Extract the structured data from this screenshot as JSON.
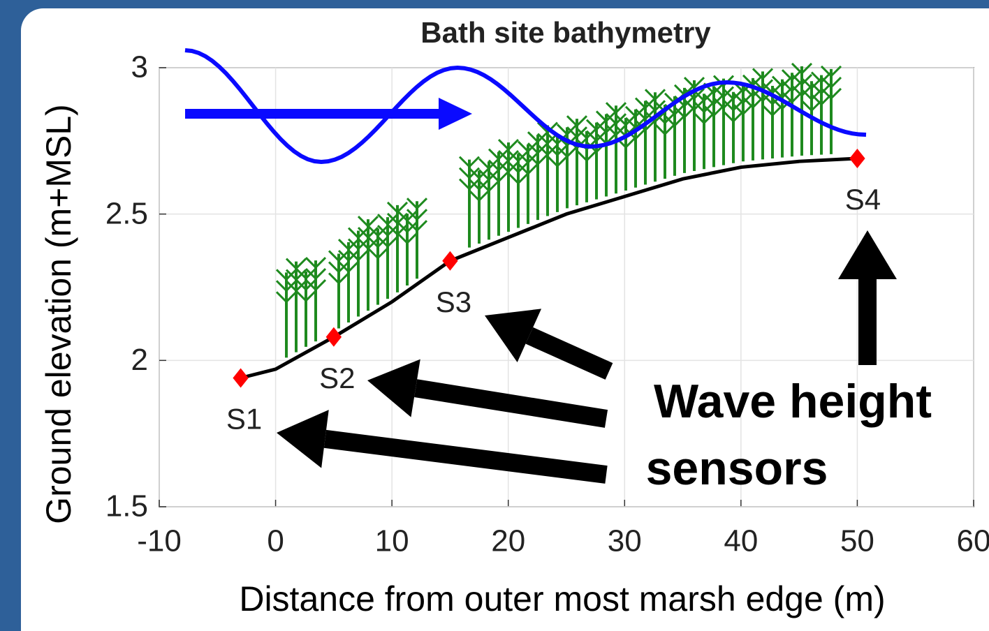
{
  "chart_data": {
    "type": "line",
    "title": "Bath site bathymetry",
    "xlabel": "Distance from outer most marsh edge (m)",
    "ylabel": "Ground elevation (m+MSL)",
    "xlim": [
      -10,
      60
    ],
    "ylim": [
      1.5,
      3
    ],
    "xticks": [
      -10,
      0,
      10,
      20,
      30,
      40,
      50,
      60
    ],
    "yticks": [
      1.5,
      2,
      2.5,
      3
    ],
    "grid": true,
    "series": [
      {
        "type": "line",
        "color": "#000000",
        "x": [
          -3,
          0,
          5,
          10,
          15,
          20,
          25,
          30,
          35,
          40,
          45,
          50
        ],
        "values": [
          1.94,
          1.97,
          2.08,
          2.2,
          2.34,
          2.42,
          2.5,
          2.56,
          2.62,
          2.66,
          2.68,
          2.69
        ]
      },
      {
        "type": "scatter",
        "color": "#ff0000",
        "x": [
          -3,
          5,
          15,
          50
        ],
        "values": [
          1.94,
          2.08,
          2.34,
          2.69
        ],
        "labels": [
          "S1",
          "S2",
          "S3",
          "S4"
        ]
      }
    ],
    "annotation": [
      "Wave height",
      "sensors"
    ]
  }
}
